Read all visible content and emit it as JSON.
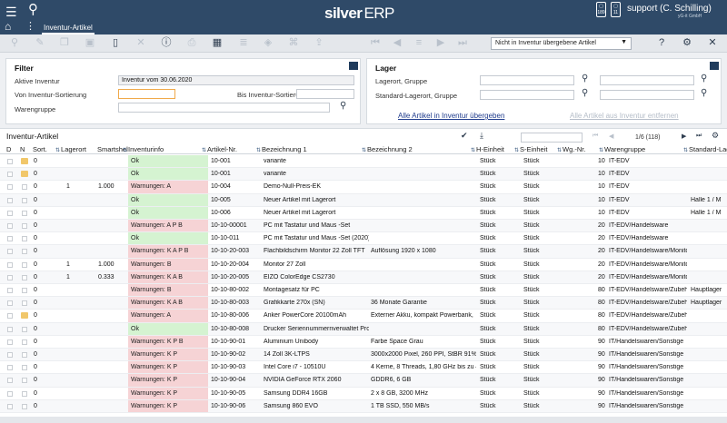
{
  "header": {
    "logo_main": "silver",
    "logo_erp": "ERP",
    "user": "support (C. Schilling)",
    "company": "yG-it GmbH",
    "badge_left": "189",
    "badge_right": "11",
    "active_tab": "Inventur-Artikel"
  },
  "toolbar": {
    "filter_value": "Nicht in Inventur übergebene Artikel"
  },
  "filter": {
    "title": "Filter",
    "active_inventory_label": "Aktive Inventur",
    "active_inventory_value": "Inventur vom 30.06.2020",
    "from_sort_label": "Von Inventur-Sortierung",
    "to_sort_label": "Bis Inventur-Sortierung",
    "group_label": "Warengruppe"
  },
  "lager": {
    "title": "Lager",
    "location_label": "Lagerort, Gruppe",
    "standard_label": "Standard-Lagerort, Gruppe",
    "link_add": "Alle Artikel in Inventur übergeben",
    "link_remove": "Alle Artikel aus Inventur entfernen"
  },
  "grid": {
    "title": "Inventur-Artikel",
    "pager": "1/6 (118)",
    "columns": [
      "D",
      "N",
      "Sort.",
      "Lagerort",
      "Smartshelf",
      "Inventurinfo",
      "Artikel-Nr.",
      "Bezeichnung 1",
      "Bezeichnung 2",
      "H-Einheit",
      "S-Einheit",
      "Wg.-Nr.",
      "Warengruppe",
      "Standard-Lagerort"
    ],
    "rows": [
      {
        "folder": true,
        "sort": "0",
        "lager": "",
        "smart": "",
        "info": "Ok",
        "status": "ok",
        "nr": "10-001",
        "bez1": "variante",
        "bez2": "",
        "h": "Stück",
        "s": "Stück",
        "wg": "10",
        "group": "IT-EDV",
        "std": ""
      },
      {
        "folder": true,
        "sort": "0",
        "lager": "",
        "smart": "",
        "info": "Ok",
        "status": "ok",
        "nr": "10-001",
        "bez1": "variante",
        "bez2": "",
        "h": "Stück",
        "s": "Stück",
        "wg": "10",
        "group": "IT-EDV",
        "std": ""
      },
      {
        "folder": false,
        "sort": "0",
        "lager": "1",
        "smart": "1.000",
        "info": "Warnungen: A",
        "status": "warn",
        "nr": "10-004",
        "bez1": "Demo-Null-Preis-EK",
        "bez2": "",
        "h": "Stück",
        "s": "Stück",
        "wg": "10",
        "group": "IT-EDV",
        "std": ""
      },
      {
        "folder": false,
        "sort": "0",
        "lager": "",
        "smart": "",
        "info": "Ok",
        "status": "ok",
        "nr": "10-005",
        "bez1": "Neuer Artikel mit Lagerort",
        "bez2": "",
        "h": "Stück",
        "s": "Stück",
        "wg": "10",
        "group": "IT-EDV",
        "std": "Halle 1 / M"
      },
      {
        "folder": false,
        "sort": "0",
        "lager": "",
        "smart": "",
        "info": "Ok",
        "status": "ok",
        "nr": "10-006",
        "bez1": "Neuer Artikel mit Lagerort",
        "bez2": "",
        "h": "Stück",
        "s": "Stück",
        "wg": "10",
        "group": "IT-EDV",
        "std": "Halle 1 / M"
      },
      {
        "folder": false,
        "sort": "0",
        "lager": "",
        "smart": "",
        "info": "Warnungen: A P B",
        "status": "warn",
        "nr": "10-10-00001",
        "bez1": "PC mit Tastatur und Maus -Set",
        "bez2": "",
        "h": "Stück",
        "s": "Stück",
        "wg": "20",
        "group": "IT-EDV/Handelsware",
        "std": ""
      },
      {
        "folder": false,
        "sort": "0",
        "lager": "",
        "smart": "",
        "info": "Ok",
        "status": "ok",
        "nr": "10-10-011",
        "bez1": "PC mit Tastatur und Maus -Set (2020)",
        "bez2": "",
        "h": "Stück",
        "s": "Stück",
        "wg": "20",
        "group": "IT-EDV/Handelsware",
        "std": ""
      },
      {
        "folder": false,
        "sort": "0",
        "lager": "",
        "smart": "",
        "info": "Warnungen: K A P B",
        "status": "warn",
        "nr": "10-10-20-003",
        "bez1": "Flachbildschirm Monitor 22 Zoll TFT",
        "bez2": "Auflösung 1920 x 1080",
        "h": "Stück",
        "s": "Stück",
        "wg": "20",
        "group": "IT-EDV/Handelsware/Monitore",
        "std": ""
      },
      {
        "folder": false,
        "sort": "0",
        "lager": "1",
        "smart": "1.000",
        "info": "Warnungen: B",
        "status": "warn",
        "nr": "10-10-20-004",
        "bez1": "Monitor 27 Zoll",
        "bez2": "",
        "h": "Stück",
        "s": "Stück",
        "wg": "20",
        "group": "IT-EDV/Handelsware/Monitore",
        "std": ""
      },
      {
        "folder": false,
        "sort": "0",
        "lager": "1",
        "smart": "0.333",
        "info": "Warnungen: K A B",
        "status": "warn",
        "nr": "10-10-20-005",
        "bez1": "EIZO ColorEdge CS2730",
        "bez2": "",
        "h": "Stück",
        "s": "Stück",
        "wg": "20",
        "group": "IT-EDV/Handelsware/Monitore",
        "std": ""
      },
      {
        "folder": false,
        "sort": "0",
        "lager": "",
        "smart": "",
        "info": "Warnungen: B",
        "status": "warn",
        "nr": "10-10-80-002",
        "bez1": "Montagesatz für PC",
        "bez2": "",
        "h": "Stück",
        "s": "Stück",
        "wg": "80",
        "group": "IT-EDV/Handelsware/Zubehör",
        "std": "Hauptlager"
      },
      {
        "folder": false,
        "sort": "0",
        "lager": "",
        "smart": "",
        "info": "Warnungen: K A B",
        "status": "warn",
        "nr": "10-10-80-003",
        "bez1": "Grafikkarte 270x (SN)",
        "bez2": "36 Monate Garantie",
        "h": "Stück",
        "s": "Stück",
        "wg": "80",
        "group": "IT-EDV/Handelsware/Zubehör",
        "std": "Hauptlager"
      },
      {
        "folder": true,
        "sort": "0",
        "lager": "",
        "smart": "",
        "info": "Warnungen: A",
        "status": "warn",
        "nr": "10-10-80-006",
        "bez1": "Anker PowerCore 20100mAh",
        "bez2": "Externer Akku, kompakt Powerbank,",
        "h": "Stück",
        "s": "Stück",
        "wg": "80",
        "group": "IT-EDV/Handelsware/Zubehör",
        "std": ""
      },
      {
        "folder": false,
        "sort": "0",
        "lager": "",
        "smart": "",
        "info": "Ok",
        "status": "ok",
        "nr": "10-10-80-008",
        "bez1": "Drucker Seriennummernverwaltet Pro",
        "bez2": "",
        "h": "Stück",
        "s": "Stück",
        "wg": "80",
        "group": "IT-EDV/Handelsware/Zubehör",
        "std": ""
      },
      {
        "folder": false,
        "sort": "0",
        "lager": "",
        "smart": "",
        "info": "Warnungen: K P B",
        "status": "warn",
        "nr": "10-10-90-01",
        "bez1": "Aluminium Unibody",
        "bez2": "Farbe Space Grau",
        "h": "Stück",
        "s": "Stück",
        "wg": "90",
        "group": "IT/Handelswaren/Sonstige",
        "std": ""
      },
      {
        "folder": false,
        "sort": "0",
        "lager": "",
        "smart": "",
        "info": "Warnungen: K P",
        "status": "warn",
        "nr": "10-10-90-02",
        "bez1": "14 Zoll 3K-LTPS",
        "bez2": "3000x2000 Pixel, 260 PPI, StBR 91%",
        "h": "Stück",
        "s": "Stück",
        "wg": "90",
        "group": "IT/Handelswaren/Sonstige",
        "std": ""
      },
      {
        "folder": false,
        "sort": "0",
        "lager": "",
        "smart": "",
        "info": "Warnungen: K P",
        "status": "warn",
        "nr": "10-10-90-03",
        "bez1": "Intel Core i7 - 10510U",
        "bez2": "4 Kerne, 8 Threads, 1,80 GHz bis zu 4",
        "h": "Stück",
        "s": "Stück",
        "wg": "90",
        "group": "IT/Handelswaren/Sonstige",
        "std": ""
      },
      {
        "folder": false,
        "sort": "0",
        "lager": "",
        "smart": "",
        "info": "Warnungen: K P",
        "status": "warn",
        "nr": "10-10-90-04",
        "bez1": "NVIDIA GeForce RTX 2060",
        "bez2": "GDDR6, 6 GB",
        "h": "Stück",
        "s": "Stück",
        "wg": "90",
        "group": "IT/Handelswaren/Sonstige",
        "std": ""
      },
      {
        "folder": false,
        "sort": "0",
        "lager": "",
        "smart": "",
        "info": "Warnungen: K P",
        "status": "warn",
        "nr": "10-10-90-05",
        "bez1": "Samsung DDR4 16GB",
        "bez2": "2 x 8 GB, 3200 MHz",
        "h": "Stück",
        "s": "Stück",
        "wg": "90",
        "group": "IT/Handelswaren/Sonstige",
        "std": ""
      },
      {
        "folder": false,
        "sort": "0",
        "lager": "",
        "smart": "",
        "info": "Warnungen: K P",
        "status": "warn",
        "nr": "10-10-90-06",
        "bez1": "Samsung 860 EVO",
        "bez2": "1 TB SSD, 550 MB/s",
        "h": "Stück",
        "s": "Stück",
        "wg": "90",
        "group": "IT/Handelswaren/Sonstige",
        "std": ""
      }
    ]
  }
}
